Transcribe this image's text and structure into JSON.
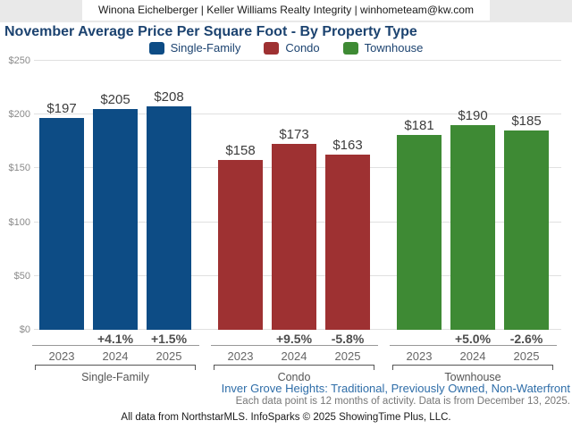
{
  "header": {
    "contact": "Winona Eichelberger | Keller Williams Realty Integrity | winhometeam@kw.com"
  },
  "title": "November Average Price Per Square Foot - By Property Type",
  "chart_data": {
    "type": "bar",
    "title": "November Average Price Per Square Foot - By Property Type",
    "categories": [
      "2023",
      "2024",
      "2025"
    ],
    "series": [
      {
        "name": "Single-Family",
        "color": "#0d4c85",
        "values": [
          197,
          205,
          208
        ],
        "labels": [
          "$197",
          "$205",
          "$208"
        ],
        "pct_change": [
          null,
          "+4.1%",
          "+1.5%"
        ]
      },
      {
        "name": "Condo",
        "color": "#9e3132",
        "values": [
          158,
          173,
          163
        ],
        "labels": [
          "$158",
          "$173",
          "$163"
        ],
        "pct_change": [
          null,
          "+9.5%",
          "-5.8%"
        ]
      },
      {
        "name": "Townhouse",
        "color": "#3e8a34",
        "values": [
          181,
          190,
          185
        ],
        "labels": [
          "$181",
          "$190",
          "$185"
        ],
        "pct_change": [
          null,
          "+5.0%",
          "-2.6%"
        ]
      }
    ],
    "ylim": [
      0,
      250
    ],
    "yticks": [
      0,
      50,
      100,
      150,
      200,
      250
    ],
    "ytick_labels": [
      "$0",
      "$50",
      "$100",
      "$150",
      "$200",
      "$250"
    ],
    "grid": true,
    "legend_position": "top-center",
    "xlabel": "",
    "ylabel": ""
  },
  "footer": {
    "filters": "Inver Grove Heights: Traditional, Previously Owned, Non-Waterfront",
    "data_note": "Each data point is 12 months of activity. Data is from December 13, 2025.",
    "attribution": "All data from NorthstarMLS. InfoSparks © 2025 ShowingTime Plus, LLC."
  }
}
